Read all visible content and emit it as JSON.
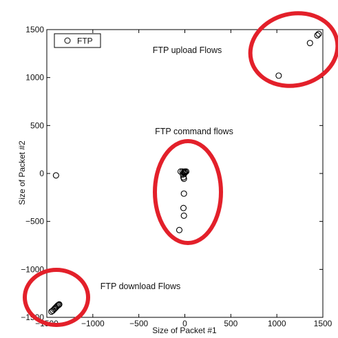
{
  "chart_data": {
    "type": "scatter",
    "xlabel": "Size of Packet #1",
    "ylabel": "Size of Packet #2",
    "xlim": [
      -1500,
      1500
    ],
    "ylim": [
      -1500,
      1500
    ],
    "xticks": [
      -1500,
      -1000,
      -500,
      0,
      500,
      1000,
      1500
    ],
    "yticks": [
      -1500,
      -1000,
      -500,
      0,
      500,
      1000,
      1500
    ],
    "xtick_labels": [
      "−1500",
      "−1000",
      "−500",
      "0",
      "500",
      "1000",
      "1500"
    ],
    "ytick_labels": [
      "−1500",
      "−1000",
      "−500",
      "0",
      "500",
      "1000",
      "1500"
    ],
    "legend_placement": "top-left",
    "grid": false,
    "series": [
      {
        "name": "FTP",
        "marker": "open-circle",
        "x": [
          -1400,
          -1450,
          -1435,
          -1420,
          -1410,
          -1400,
          -1390,
          -1380,
          -1370,
          -1365,
          -25,
          -45,
          -10,
          0,
          5,
          15,
          -20,
          -5,
          -10,
          -15,
          -10,
          -10,
          -15,
          -10,
          -60,
          1020,
          1360,
          1440,
          1455
        ],
        "y": [
          -20,
          -1440,
          -1430,
          -1415,
          -1405,
          -1395,
          -1385,
          -1375,
          -1370,
          -1365,
          20,
          20,
          15,
          20,
          15,
          20,
          -10,
          0,
          10,
          -40,
          -55,
          -210,
          -360,
          -440,
          -590,
          1020,
          1360,
          1440,
          1455
        ]
      }
    ],
    "annotations": [
      {
        "text": "FTP upload Flows"
      },
      {
        "text": "FTP command flows"
      },
      {
        "text": "FTP download Flows"
      }
    ],
    "highlight_color": "#e3202a"
  }
}
